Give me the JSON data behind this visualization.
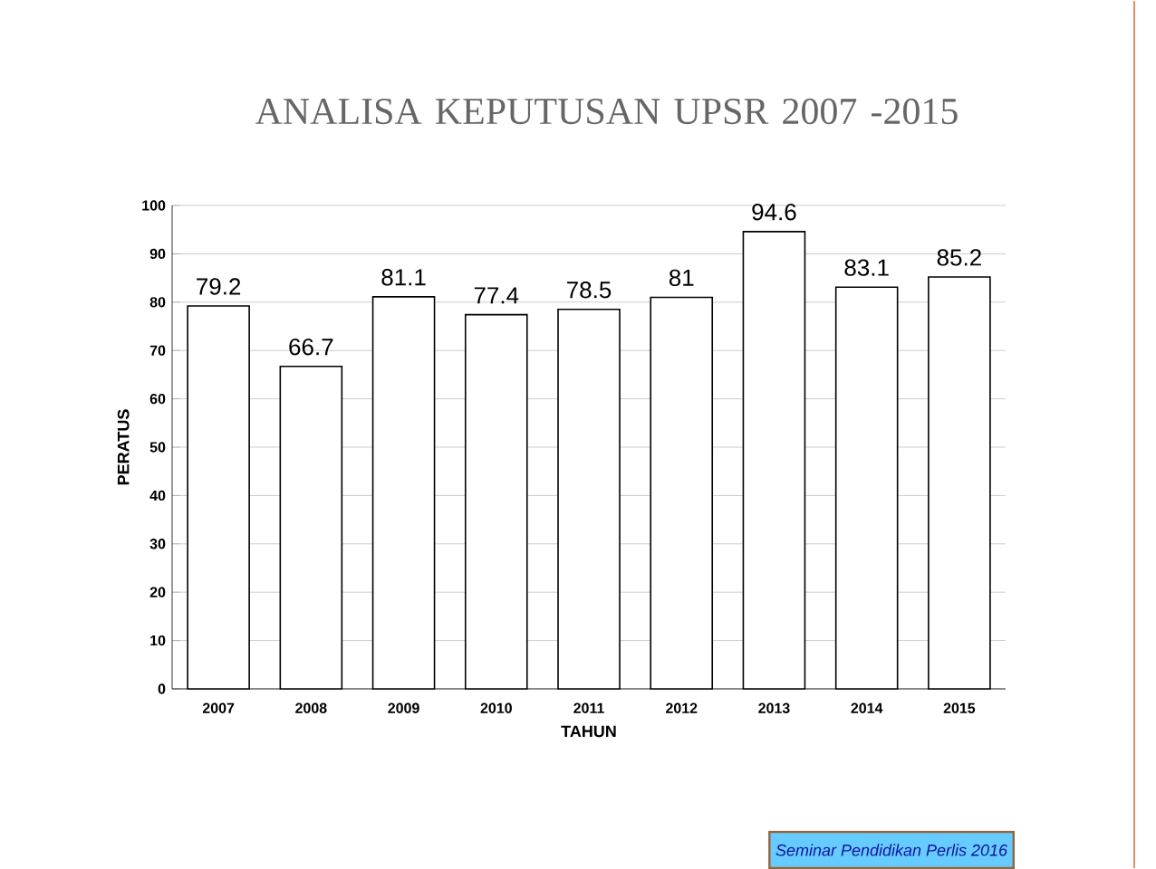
{
  "chart_data": {
    "type": "bar",
    "title": "ANALISA KEPUTUSAN UPSR 2007 -2015",
    "xlabel": "TAHUN",
    "ylabel": "PERATUS",
    "categories": [
      "2007",
      "2008",
      "2009",
      "2010",
      "2011",
      "2012",
      "2013",
      "2014",
      "2015"
    ],
    "values": [
      79.2,
      66.7,
      81.1,
      77.4,
      78.5,
      81,
      94.6,
      83.1,
      85.2
    ],
    "value_labels": [
      "79.2",
      "66.7",
      "81.1",
      "77.4",
      "78.5",
      "81",
      "94.6",
      "83.1",
      "85.2"
    ],
    "color": "#ffffff",
    "ylim": [
      0,
      100
    ],
    "yticks": [
      0,
      10,
      20,
      30,
      40,
      50,
      60,
      70,
      80,
      90,
      100
    ],
    "grid": "y",
    "annotations": [
      "Seminar Pendidikan Perlis 2016"
    ]
  }
}
